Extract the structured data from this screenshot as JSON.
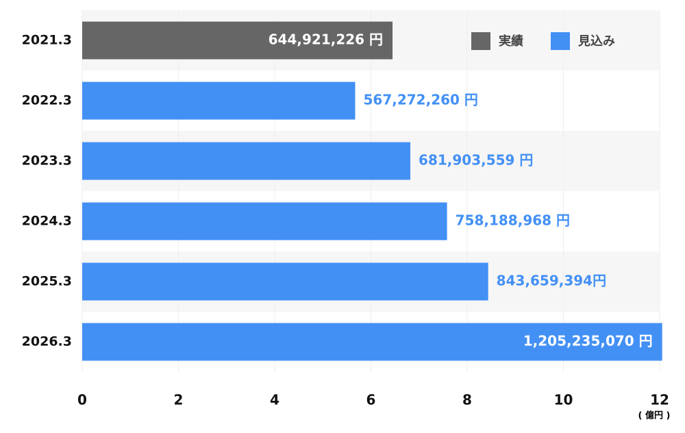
{
  "chart_data": {
    "type": "bar",
    "orientation": "horizontal",
    "categories": [
      "2021.3",
      "2022.3",
      "2023.3",
      "2024.3",
      "2025.3",
      "2026.3"
    ],
    "series": [
      {
        "name": "実績",
        "color": "#666666",
        "values": [
          6.44921226,
          null,
          null,
          null,
          null,
          null
        ],
        "value_labels": [
          "644,921,226 円",
          null,
          null,
          null,
          null,
          null
        ]
      },
      {
        "name": "見込み",
        "color": "#4390f5",
        "values": [
          null,
          5.6727226,
          6.81903559,
          7.58188968,
          8.43659394,
          12.0523507
        ],
        "value_labels": [
          null,
          "567,272,260 円",
          "681,903,559 円",
          "758,188,968 円",
          "843,659,394円",
          "1,205,235,070 円"
        ]
      }
    ],
    "xlim": [
      0,
      12
    ],
    "xticks": [
      0,
      2,
      4,
      6,
      8,
      10,
      12
    ],
    "x_label": "( 億円 )",
    "legend": "top-right"
  }
}
